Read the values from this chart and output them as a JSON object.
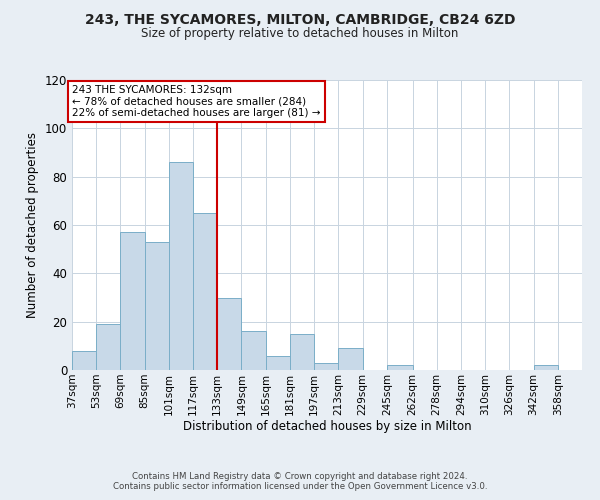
{
  "title": "243, THE SYCAMORES, MILTON, CAMBRIDGE, CB24 6ZD",
  "subtitle": "Size of property relative to detached houses in Milton",
  "xlabel": "Distribution of detached houses by size in Milton",
  "ylabel": "Number of detached properties",
  "footer_line1": "Contains HM Land Registry data © Crown copyright and database right 2024.",
  "footer_line2": "Contains public sector information licensed under the Open Government Licence v3.0.",
  "bin_labels": [
    "37sqm",
    "53sqm",
    "69sqm",
    "85sqm",
    "101sqm",
    "117sqm",
    "133sqm",
    "149sqm",
    "165sqm",
    "181sqm",
    "197sqm",
    "213sqm",
    "229sqm",
    "245sqm",
    "262sqm",
    "278sqm",
    "294sqm",
    "310sqm",
    "326sqm",
    "342sqm",
    "358sqm"
  ],
  "bin_edges": [
    37,
    53,
    69,
    85,
    101,
    117,
    133,
    149,
    165,
    181,
    197,
    213,
    229,
    245,
    262,
    278,
    294,
    310,
    326,
    342,
    358,
    374
  ],
  "bar_heights": [
    8,
    19,
    57,
    53,
    86,
    65,
    30,
    16,
    6,
    15,
    3,
    9,
    0,
    2,
    0,
    0,
    0,
    0,
    0,
    2,
    0
  ],
  "bar_color": "#c8d9e8",
  "bar_edge_color": "#7aaec8",
  "vline_x": 133,
  "vline_color": "#cc0000",
  "ylim": [
    0,
    120
  ],
  "yticks": [
    0,
    20,
    40,
    60,
    80,
    100,
    120
  ],
  "annotation_title": "243 THE SYCAMORES: 132sqm",
  "annotation_line1": "← 78% of detached houses are smaller (284)",
  "annotation_line2": "22% of semi-detached houses are larger (81) →",
  "annotation_box_color": "#ffffff",
  "annotation_box_edge": "#cc0000",
  "background_color": "#e8eef4",
  "plot_bg_color": "#ffffff",
  "grid_color": "#c8d4e0"
}
